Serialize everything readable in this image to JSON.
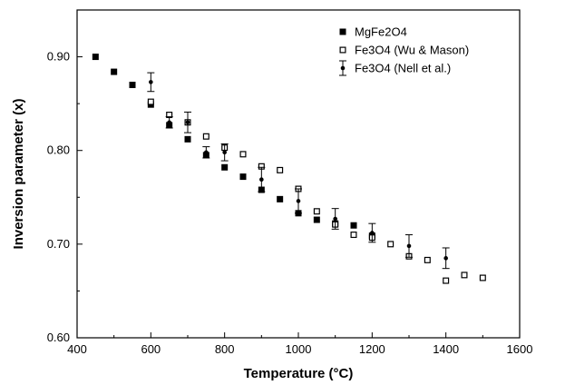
{
  "chart_data": {
    "type": "scatter",
    "title": "",
    "xlabel": "Temperature (°C)",
    "ylabel": "Inversion parameter (x)",
    "xlim": [
      400,
      1600
    ],
    "ylim": [
      0.6,
      0.95
    ],
    "xticks": [
      "400",
      "600",
      "800",
      "1000",
      "1200",
      "1400",
      "1600"
    ],
    "yticks": [
      "0.60",
      "0.70",
      "0.80",
      "0.90"
    ],
    "grid": false,
    "legend_position": "top-right",
    "series": [
      {
        "name": "MgFe2O4",
        "marker": "filled-square",
        "color": "#000000",
        "points": [
          {
            "x": 450,
            "y": 0.9
          },
          {
            "x": 500,
            "y": 0.884
          },
          {
            "x": 550,
            "y": 0.87
          },
          {
            "x": 600,
            "y": 0.849
          },
          {
            "x": 650,
            "y": 0.827
          },
          {
            "x": 700,
            "y": 0.812
          },
          {
            "x": 750,
            "y": 0.795
          },
          {
            "x": 800,
            "y": 0.782
          },
          {
            "x": 850,
            "y": 0.772
          },
          {
            "x": 900,
            "y": 0.758
          },
          {
            "x": 950,
            "y": 0.748
          },
          {
            "x": 1000,
            "y": 0.733
          },
          {
            "x": 1050,
            "y": 0.726
          },
          {
            "x": 1100,
            "y": 0.722
          },
          {
            "x": 1150,
            "y": 0.72
          },
          {
            "x": 1200,
            "y": 0.709
          }
        ]
      },
      {
        "name": "Fe3O4 (Wu & Mason)",
        "marker": "open-square",
        "color": "#000000",
        "points": [
          {
            "x": 600,
            "y": 0.852
          },
          {
            "x": 650,
            "y": 0.838
          },
          {
            "x": 700,
            "y": 0.83
          },
          {
            "x": 750,
            "y": 0.815
          },
          {
            "x": 800,
            "y": 0.803
          },
          {
            "x": 850,
            "y": 0.796
          },
          {
            "x": 900,
            "y": 0.783
          },
          {
            "x": 950,
            "y": 0.779
          },
          {
            "x": 1000,
            "y": 0.759
          },
          {
            "x": 1050,
            "y": 0.735
          },
          {
            "x": 1100,
            "y": 0.721
          },
          {
            "x": 1150,
            "y": 0.71
          },
          {
            "x": 1200,
            "y": 0.707
          },
          {
            "x": 1250,
            "y": 0.7
          },
          {
            "x": 1300,
            "y": 0.687
          },
          {
            "x": 1350,
            "y": 0.683
          },
          {
            "x": 1400,
            "y": 0.661
          },
          {
            "x": 1450,
            "y": 0.667
          },
          {
            "x": 1500,
            "y": 0.664
          }
        ]
      },
      {
        "name": "Fe3O4 (Nell et al.)",
        "marker": "dot-errorbar",
        "color": "#000000",
        "points": [
          {
            "x": 600,
            "y": 0.873,
            "err": 0.01
          },
          {
            "x": 650,
            "y": 0.83,
            "err": 0.006
          },
          {
            "x": 700,
            "y": 0.83,
            "err": 0.011
          },
          {
            "x": 750,
            "y": 0.798,
            "err": 0.006
          },
          {
            "x": 800,
            "y": 0.798,
            "err": 0.009
          },
          {
            "x": 900,
            "y": 0.769,
            "err": 0.013
          },
          {
            "x": 1000,
            "y": 0.746,
            "err": 0.013
          },
          {
            "x": 1100,
            "y": 0.727,
            "err": 0.011
          },
          {
            "x": 1200,
            "y": 0.712,
            "err": 0.01
          },
          {
            "x": 1300,
            "y": 0.698,
            "err": 0.012
          },
          {
            "x": 1400,
            "y": 0.685,
            "err": 0.011
          }
        ]
      }
    ]
  }
}
